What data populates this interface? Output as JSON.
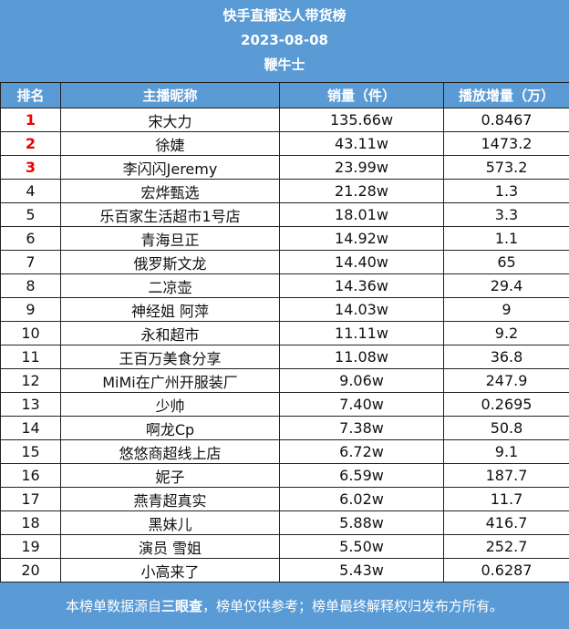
{
  "header": {
    "title": "快手直播达人带货榜",
    "date": "2023-08-08",
    "source": "鞭牛士"
  },
  "table": {
    "columns": [
      "排名",
      "主播昵称",
      "销量（件）",
      "播放增量（万）"
    ],
    "rows": [
      [
        "1",
        "宋大力",
        "135.66w",
        "0.8467"
      ],
      [
        "2",
        "徐婕",
        "43.11w",
        "1473.2"
      ],
      [
        "3",
        "李闪闪Jeremy",
        "23.99w",
        "573.2"
      ],
      [
        "4",
        "宏烨甄选",
        "21.28w",
        "1.3"
      ],
      [
        "5",
        "乐百家生活超市1号店",
        "18.01w",
        "3.3"
      ],
      [
        "6",
        "青海旦正",
        "14.92w",
        "1.1"
      ],
      [
        "7",
        "俄罗斯文龙",
        "14.40w",
        "65"
      ],
      [
        "8",
        "二凉壶",
        "14.36w",
        "29.4"
      ],
      [
        "9",
        "神经姐 阿萍",
        "14.03w",
        "9"
      ],
      [
        "10",
        "永和超市",
        "11.11w",
        "9.2"
      ],
      [
        "11",
        "王百万美食分享",
        "11.08w",
        "36.8"
      ],
      [
        "12",
        "MiMi在广州开服装厂",
        "9.06w",
        "247.9"
      ],
      [
        "13",
        "少帅",
        "7.40w",
        "0.2695"
      ],
      [
        "14",
        "啊龙Cp",
        "7.38w",
        "50.8"
      ],
      [
        "15",
        "悠悠商超线上店",
        "6.72w",
        "9.1"
      ],
      [
        "16",
        "妮子",
        "6.59w",
        "187.7"
      ],
      [
        "17",
        "燕青超真实",
        "6.02w",
        "11.7"
      ],
      [
        "18",
        "黑妹儿",
        "5.88w",
        "416.7"
      ],
      [
        "19",
        "演员 雪姐",
        "5.50w",
        "252.7"
      ],
      [
        "20",
        "小高来了",
        "5.43w",
        "0.6287"
      ]
    ]
  },
  "footer": {
    "before": "本榜单数据源自",
    "bold": "三眼查",
    "after": "，榜单仅供参考；榜单最终解释权归发布方所有。"
  }
}
